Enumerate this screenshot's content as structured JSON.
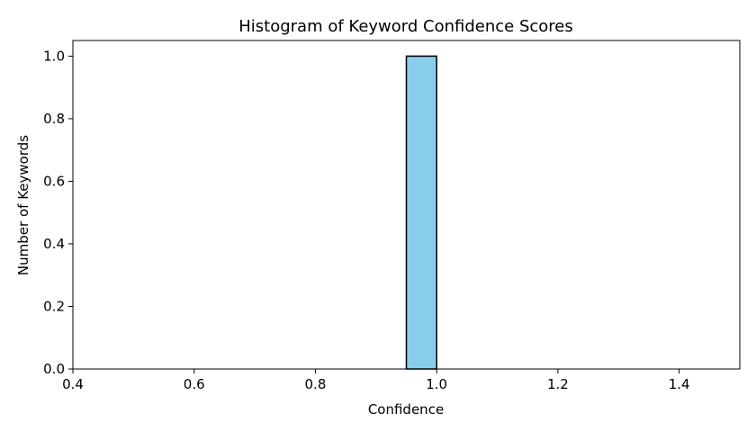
{
  "chart_data": {
    "type": "bar",
    "title": "Histogram of Keyword Confidence Scores",
    "xlabel": "Confidence",
    "ylabel": "Number of Keywords",
    "xlim": [
      0.4,
      1.5
    ],
    "ylim": [
      0,
      1.05
    ],
    "xticks": [
      "0.4",
      "0.6",
      "0.8",
      "1.0",
      "1.2",
      "1.4"
    ],
    "yticks": [
      "0.0",
      "0.2",
      "0.4",
      "0.6",
      "0.8",
      "1.0"
    ],
    "bin_edges": [
      0.45,
      0.5,
      0.55,
      0.6,
      0.65,
      0.7,
      0.75,
      0.8,
      0.85,
      0.9,
      0.95,
      1.0,
      1.05,
      1.1,
      1.15,
      1.2,
      1.25,
      1.3,
      1.35,
      1.4,
      1.45
    ],
    "counts": [
      0,
      0,
      0,
      0,
      0,
      0,
      0,
      0,
      0,
      0,
      1,
      0,
      0,
      0,
      0,
      0,
      0,
      0,
      0,
      0
    ],
    "grid": false,
    "colors": {
      "bar_fill": "#87CEEB",
      "bar_edge": "#000000",
      "axis": "#000000"
    }
  }
}
